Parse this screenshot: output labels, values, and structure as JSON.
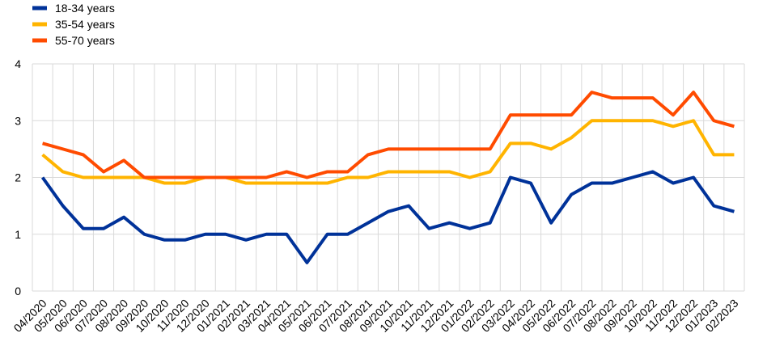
{
  "chart_data": {
    "type": "line",
    "categories": [
      "04/2020",
      "05/2020",
      "06/2020",
      "07/2020",
      "08/2020",
      "09/2020",
      "10/2020",
      "11/2020",
      "12/2020",
      "01/2021",
      "02/2021",
      "03/2021",
      "04/2021",
      "05/2021",
      "06/2021",
      "07/2021",
      "08/2021",
      "09/2021",
      "10/2021",
      "11/2021",
      "12/2021",
      "01/2022",
      "02/2022",
      "03/2022",
      "04/2022",
      "05/2022",
      "06/2022",
      "07/2022",
      "08/2022",
      "09/2022",
      "10/2022",
      "11/2022",
      "12/2022",
      "01/2023",
      "02/2023"
    ],
    "series": [
      {
        "name": "18-34 years",
        "color": "#003299",
        "values": [
          2.0,
          1.5,
          1.1,
          1.1,
          1.3,
          1.0,
          0.9,
          0.9,
          1.0,
          1.0,
          0.9,
          1.0,
          1.0,
          0.5,
          1.0,
          1.0,
          1.2,
          1.4,
          1.5,
          1.1,
          1.2,
          1.1,
          1.2,
          2.0,
          1.9,
          1.2,
          1.7,
          1.9,
          1.9,
          2.0,
          2.1,
          1.9,
          2.0,
          1.5,
          1.4
        ]
      },
      {
        "name": "35-54 years",
        "color": "#ffb400",
        "values": [
          2.4,
          2.1,
          2.0,
          2.0,
          2.0,
          2.0,
          1.9,
          1.9,
          2.0,
          2.0,
          1.9,
          1.9,
          1.9,
          1.9,
          1.9,
          2.0,
          2.0,
          2.1,
          2.1,
          2.1,
          2.1,
          2.0,
          2.1,
          2.6,
          2.6,
          2.5,
          2.7,
          3.0,
          3.0,
          3.0,
          3.0,
          2.9,
          3.0,
          2.4,
          2.4
        ]
      },
      {
        "name": "55-70 years",
        "color": "#ff4b00",
        "values": [
          2.6,
          2.5,
          2.4,
          2.1,
          2.3,
          2.0,
          2.0,
          2.0,
          2.0,
          2.0,
          2.0,
          2.0,
          2.1,
          2.0,
          2.1,
          2.1,
          2.4,
          2.5,
          2.5,
          2.5,
          2.5,
          2.5,
          2.5,
          3.1,
          3.1,
          3.1,
          3.1,
          3.5,
          3.4,
          3.4,
          3.4,
          3.1,
          3.5,
          3.0,
          2.9
        ]
      }
    ],
    "ylim": [
      0,
      4
    ],
    "yticks": [
      0,
      1,
      2,
      3,
      4
    ],
    "grid": true
  }
}
